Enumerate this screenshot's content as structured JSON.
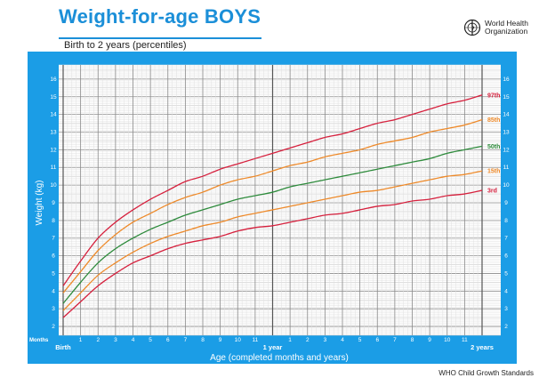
{
  "header": {
    "title": "Weight-for-age BOYS",
    "subtitle": "Birth to 2 years (percentiles)",
    "org_line1": "World Health",
    "org_line2": "Organization",
    "logo_icon": "who-emblem-icon"
  },
  "footer": {
    "text": "WHO Child Growth Standards"
  },
  "colors": {
    "frame": "#1b9de6",
    "title": "#1b8fd8",
    "p3": "#d6203d",
    "p15": "#ee8a2a",
    "p50": "#2e8b3c",
    "p85": "#ee8a2a",
    "p97": "#d6203d"
  },
  "chart_data": {
    "type": "line",
    "ylabel": "Weight (kg)",
    "xlabel": "Age (completed months and years)",
    "months_label": "Months",
    "ylim": [
      1.5,
      16.8
    ],
    "xlim": [
      0,
      24
    ],
    "y_ticks": [
      "2",
      "3",
      "4",
      "5",
      "6",
      "7",
      "8",
      "9",
      "10",
      "11",
      "12",
      "13",
      "14",
      "15",
      "16"
    ],
    "x_tick_labels": [
      "Birth",
      "1",
      "2",
      "3",
      "4",
      "5",
      "6",
      "7",
      "8",
      "9",
      "10",
      "11",
      "1 year",
      "1",
      "2",
      "3",
      "4",
      "5",
      "6",
      "7",
      "8",
      "9",
      "10",
      "11",
      "2 years"
    ],
    "grid": true,
    "x": [
      0,
      1,
      2,
      3,
      4,
      5,
      6,
      7,
      8,
      9,
      10,
      11,
      12,
      13,
      14,
      15,
      16,
      17,
      18,
      19,
      20,
      21,
      22,
      23,
      24
    ],
    "series": [
      {
        "name": "3rd",
        "values": [
          2.5,
          3.4,
          4.3,
          5.0,
          5.6,
          6.0,
          6.4,
          6.7,
          6.9,
          7.1,
          7.4,
          7.6,
          7.7,
          7.9,
          8.1,
          8.3,
          8.4,
          8.6,
          8.8,
          8.9,
          9.1,
          9.2,
          9.4,
          9.5,
          9.7
        ]
      },
      {
        "name": "15th",
        "values": [
          2.9,
          3.9,
          4.9,
          5.6,
          6.2,
          6.7,
          7.1,
          7.4,
          7.7,
          7.9,
          8.2,
          8.4,
          8.6,
          8.8,
          9.0,
          9.2,
          9.4,
          9.6,
          9.7,
          9.9,
          10.1,
          10.3,
          10.5,
          10.6,
          10.8
        ]
      },
      {
        "name": "50th",
        "values": [
          3.3,
          4.5,
          5.6,
          6.4,
          7.0,
          7.5,
          7.9,
          8.3,
          8.6,
          8.9,
          9.2,
          9.4,
          9.6,
          9.9,
          10.1,
          10.3,
          10.5,
          10.7,
          10.9,
          11.1,
          11.3,
          11.5,
          11.8,
          12.0,
          12.2
        ]
      },
      {
        "name": "85th",
        "values": [
          3.9,
          5.1,
          6.3,
          7.2,
          7.9,
          8.4,
          8.9,
          9.3,
          9.6,
          10.0,
          10.3,
          10.5,
          10.8,
          11.1,
          11.3,
          11.6,
          11.8,
          12.0,
          12.3,
          12.5,
          12.7,
          13.0,
          13.2,
          13.4,
          13.7
        ]
      },
      {
        "name": "97th",
        "values": [
          4.3,
          5.7,
          7.0,
          7.9,
          8.6,
          9.2,
          9.7,
          10.2,
          10.5,
          10.9,
          11.2,
          11.5,
          11.8,
          12.1,
          12.4,
          12.7,
          12.9,
          13.2,
          13.5,
          13.7,
          14.0,
          14.3,
          14.6,
          14.8,
          15.1
        ]
      }
    ]
  }
}
